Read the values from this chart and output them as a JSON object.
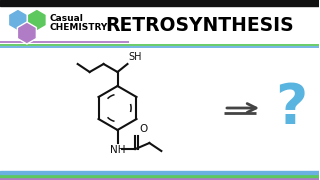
{
  "title": "RETROSYNTHESIS",
  "brand_line1": "Casual",
  "brand_line2": "CHEMISTRY",
  "bg_color": "#ffffff",
  "title_color": "#000000",
  "brand_color": "#000000",
  "hex_blue": "#6ab0e0",
  "hex_green": "#5dc85d",
  "hex_purple": "#b07cc6",
  "stripe_purple": "#b07cc6",
  "stripe_green": "#5dc85d",
  "stripe_blue": "#6ab0e0",
  "question_color": "#5ab4e0",
  "arrow_color": "#444444",
  "top_bar_color": "#111111",
  "mol_color": "#111111"
}
